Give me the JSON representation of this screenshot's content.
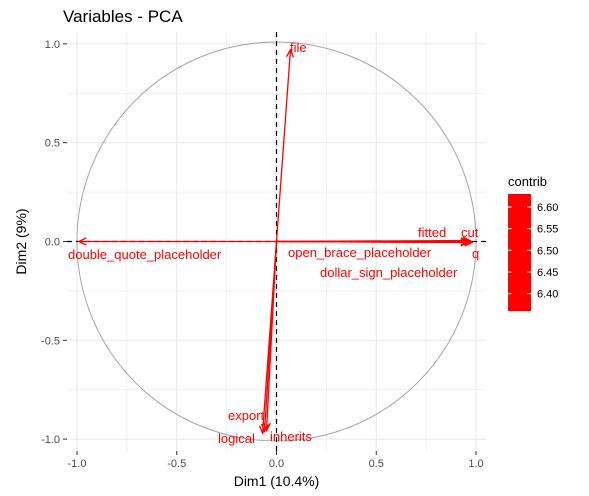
{
  "chart_data": {
    "type": "scatter",
    "subtype": "pca-variable-correlation-circle",
    "title": "Variables - PCA",
    "xlabel": "Dim1 (10.4%)",
    "ylabel": "Dim2 (9%)",
    "xlim": [
      -1.05,
      1.05
    ],
    "ylim": [
      -1.06,
      1.06
    ],
    "xticks": [
      -1.0,
      -0.5,
      0.0,
      0.5,
      1.0
    ],
    "xtick_labels": [
      "-1.0",
      "-0.5",
      "0.0",
      "0.5",
      "1.0"
    ],
    "yticks": [
      -1.0,
      -0.5,
      0.0,
      0.5,
      1.0
    ],
    "ytick_labels": [
      "-1.0",
      "-0.5",
      "0.0",
      "0.5",
      "1.0"
    ],
    "grid": true,
    "unit_circle": true,
    "reference_lines": {
      "x": 0,
      "y": 0,
      "style": "dashed"
    },
    "arrow_color": "#ff0000",
    "circle_color": "#a6a6a6",
    "grid_color": "#ebebeb",
    "variables": [
      {
        "name": "file",
        "x": 0.07,
        "y": 0.97
      },
      {
        "name": "double_quote_placeholder",
        "x": -0.99,
        "y": 0.0
      },
      {
        "name": "fitted",
        "x": 0.97,
        "y": 0.005
      },
      {
        "name": "cut",
        "x": 0.975,
        "y": 0.0
      },
      {
        "name": "open_brace_placeholder",
        "x": 0.96,
        "y": -0.005
      },
      {
        "name": "q",
        "x": 0.98,
        "y": -0.005
      },
      {
        "name": "dollar_sign_placeholder",
        "x": 0.96,
        "y": 0.0
      },
      {
        "name": "export",
        "x": -0.06,
        "y": -0.96
      },
      {
        "name": "logical",
        "x": -0.07,
        "y": -0.97
      },
      {
        "name": "inherits",
        "x": -0.05,
        "y": -0.955
      }
    ],
    "legend": {
      "title": "contrib",
      "placement": "right",
      "range": [
        6.36,
        6.63
      ],
      "ticks": [
        6.4,
        6.45,
        6.5,
        6.55,
        6.6
      ],
      "tick_labels": [
        "6.40",
        "6.45",
        "6.50",
        "6.55",
        "6.60"
      ],
      "color": "#ff0000"
    }
  }
}
